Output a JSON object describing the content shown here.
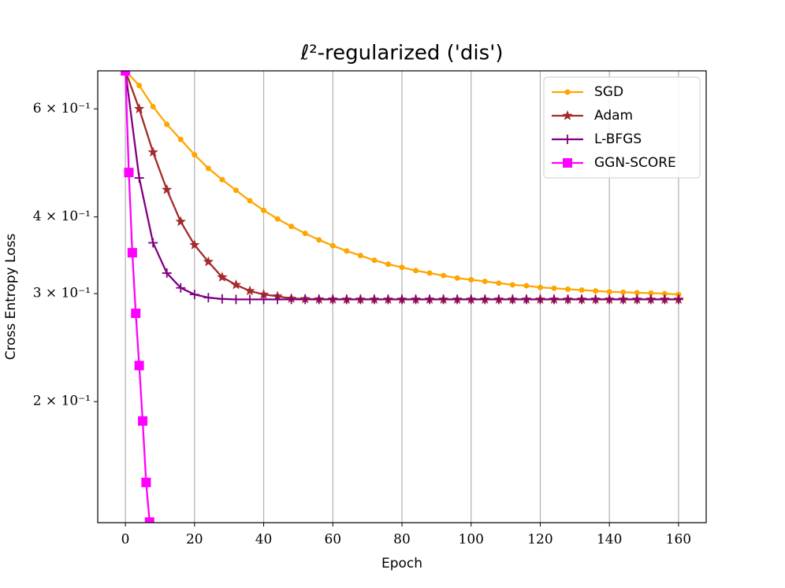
{
  "chart_data": {
    "type": "line",
    "title": "ℓ²-regularized ('dis')",
    "x_label": "Epoch",
    "y_label": "Cross Entropy Loss",
    "xlim": [
      -8,
      168
    ],
    "xticks": [
      0,
      20,
      40,
      60,
      80,
      100,
      120,
      140,
      160
    ],
    "ylim": [
      0.127,
      0.692
    ],
    "y_scale": "log",
    "yticks": [
      {
        "value": 0.2,
        "label": "2 × 10⁻¹"
      },
      {
        "value": 0.3,
        "label": "3 × 10⁻¹"
      },
      {
        "value": 0.4,
        "label": "4 × 10⁻¹"
      },
      {
        "value": 0.6,
        "label": "6 × 10⁻¹"
      }
    ],
    "grid": "x",
    "legend": "upper right",
    "series": [
      {
        "name": "SGD",
        "color": "#ffa500",
        "marker": "circle",
        "x": [
          0,
          4,
          8,
          12,
          16,
          20,
          24,
          28,
          32,
          36,
          40,
          44,
          48,
          52,
          56,
          60,
          64,
          68,
          72,
          76,
          80,
          84,
          88,
          92,
          96,
          100,
          104,
          108,
          112,
          116,
          120,
          124,
          128,
          132,
          136,
          140,
          144,
          148,
          152,
          156,
          160
        ],
        "values": [
          0.692,
          0.655,
          0.605,
          0.566,
          0.535,
          0.505,
          0.48,
          0.46,
          0.442,
          0.425,
          0.41,
          0.397,
          0.386,
          0.376,
          0.367,
          0.359,
          0.352,
          0.346,
          0.34,
          0.335,
          0.331,
          0.327,
          0.324,
          0.321,
          0.318,
          0.316,
          0.314,
          0.312,
          0.31,
          0.309,
          0.307,
          0.306,
          0.305,
          0.304,
          0.303,
          0.302,
          0.3015,
          0.301,
          0.3005,
          0.3,
          0.299
        ]
      },
      {
        "name": "Adam",
        "color": "#a52a2a",
        "marker": "star",
        "x": [
          0,
          4,
          8,
          12,
          16,
          20,
          24,
          28,
          32,
          36,
          40,
          44,
          48,
          52,
          56,
          60,
          64,
          68,
          72,
          76,
          80,
          84,
          88,
          92,
          96,
          100,
          104,
          108,
          112,
          116,
          120,
          124,
          128,
          132,
          136,
          140,
          144,
          148,
          152,
          156,
          160
        ],
        "values": [
          0.692,
          0.6,
          0.51,
          0.443,
          0.393,
          0.36,
          0.338,
          0.319,
          0.31,
          0.303,
          0.299,
          0.297,
          0.2945,
          0.294,
          0.2937,
          0.2936,
          0.2935,
          0.2935,
          0.2935,
          0.2935,
          0.2935,
          0.2935,
          0.2935,
          0.2935,
          0.2935,
          0.2935,
          0.2935,
          0.2935,
          0.2935,
          0.2935,
          0.2935,
          0.2935,
          0.2935,
          0.2935,
          0.2935,
          0.2935,
          0.2935,
          0.2935,
          0.2935,
          0.2935,
          0.2935
        ]
      },
      {
        "name": "L-BFGS",
        "color": "#800080",
        "marker": "plus",
        "x": [
          0,
          4,
          8,
          12,
          16,
          20,
          24,
          28,
          32,
          36,
          40,
          44,
          48,
          52,
          56,
          60,
          64,
          68,
          72,
          76,
          80,
          84,
          88,
          92,
          96,
          100,
          104,
          108,
          112,
          116,
          120,
          124,
          128,
          132,
          136,
          140,
          144,
          148,
          152,
          156,
          160
        ],
        "values": [
          0.692,
          0.463,
          0.363,
          0.324,
          0.3065,
          0.299,
          0.2955,
          0.294,
          0.2935,
          0.2935,
          0.2935,
          0.2935,
          0.2935,
          0.2935,
          0.2935,
          0.2935,
          0.2935,
          0.2935,
          0.2935,
          0.2935,
          0.2935,
          0.2935,
          0.2935,
          0.2935,
          0.2935,
          0.2935,
          0.2935,
          0.2935,
          0.2935,
          0.2935,
          0.2935,
          0.2935,
          0.2935,
          0.2935,
          0.2935,
          0.2935,
          0.2935,
          0.2935,
          0.2935,
          0.2935,
          0.2935
        ]
      },
      {
        "name": "GGN-SCORE",
        "color": "#ff00ff",
        "marker": "square",
        "x": [
          0,
          1,
          2,
          3,
          4,
          5,
          6,
          7
        ],
        "values": [
          0.692,
          0.4725,
          0.3497,
          0.2786,
          0.229,
          0.186,
          0.1477,
          0.1273
        ]
      }
    ]
  }
}
